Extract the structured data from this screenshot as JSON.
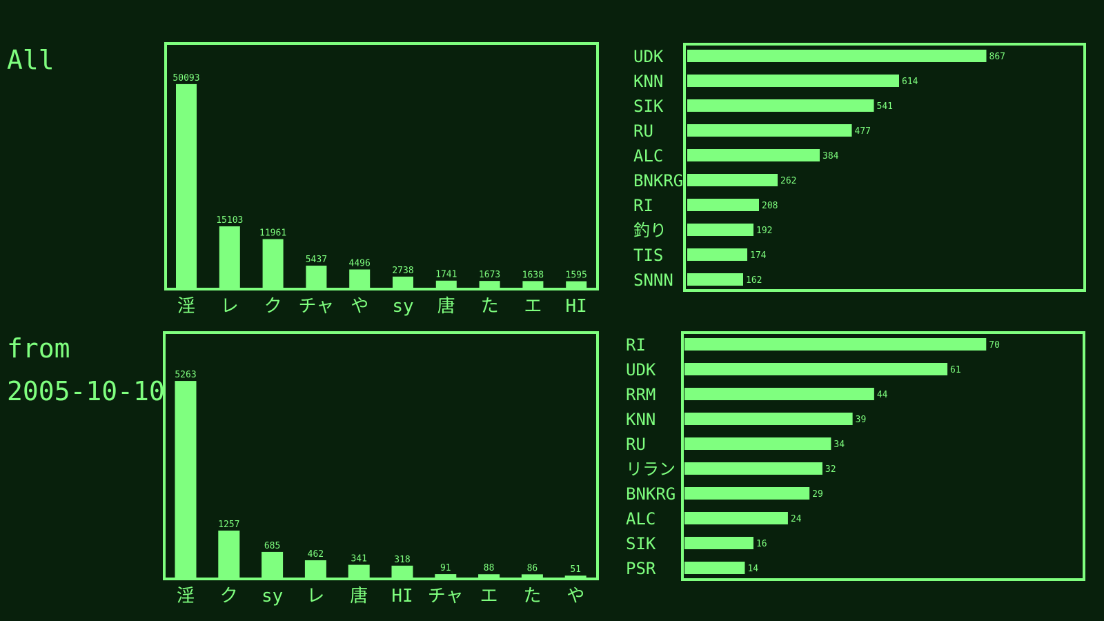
{
  "theme": {
    "background": "#08200c",
    "accent": "#7fff7f"
  },
  "panels": [
    {
      "label": "All"
    },
    {
      "label": "from 2005-10-10"
    }
  ],
  "chart_data": [
    {
      "type": "bar",
      "categories": [
        "淫",
        "レ",
        "ク",
        "チャ",
        "や",
        "sy",
        "唐",
        "た",
        "エ",
        "HI"
      ],
      "values": [
        50093,
        15103,
        11961,
        5437,
        4496,
        2738,
        1741,
        1673,
        1638,
        1595
      ],
      "ylim": [
        0,
        55000
      ]
    },
    {
      "type": "bar",
      "orientation": "horizontal",
      "categories": [
        "UDK",
        "KNN",
        "SIK",
        "RU",
        "ALC",
        "BNKRG",
        "RI",
        "釣り",
        "TIS",
        "SNNN"
      ],
      "values": [
        867,
        614,
        541,
        477,
        384,
        262,
        208,
        192,
        174,
        162
      ],
      "xlim": [
        0,
        1000
      ]
    },
    {
      "type": "bar",
      "categories": [
        "淫",
        "ク",
        "sy",
        "レ",
        "唐",
        "HI",
        "チャ",
        "エ",
        "た",
        "や"
      ],
      "values": [
        5263,
        1257,
        685,
        462,
        341,
        318,
        91,
        88,
        86,
        51
      ],
      "ylim": [
        0,
        5800
      ]
    },
    {
      "type": "bar",
      "orientation": "horizontal",
      "categories": [
        "RI",
        "UDK",
        "RRM",
        "KNN",
        "RU",
        "リラン",
        "BNKRG",
        "ALC",
        "SIK",
        "PSR"
      ],
      "values": [
        70,
        61,
        44,
        39,
        34,
        32,
        29,
        24,
        16,
        14
      ],
      "xlim": [
        0,
        81
      ]
    }
  ]
}
